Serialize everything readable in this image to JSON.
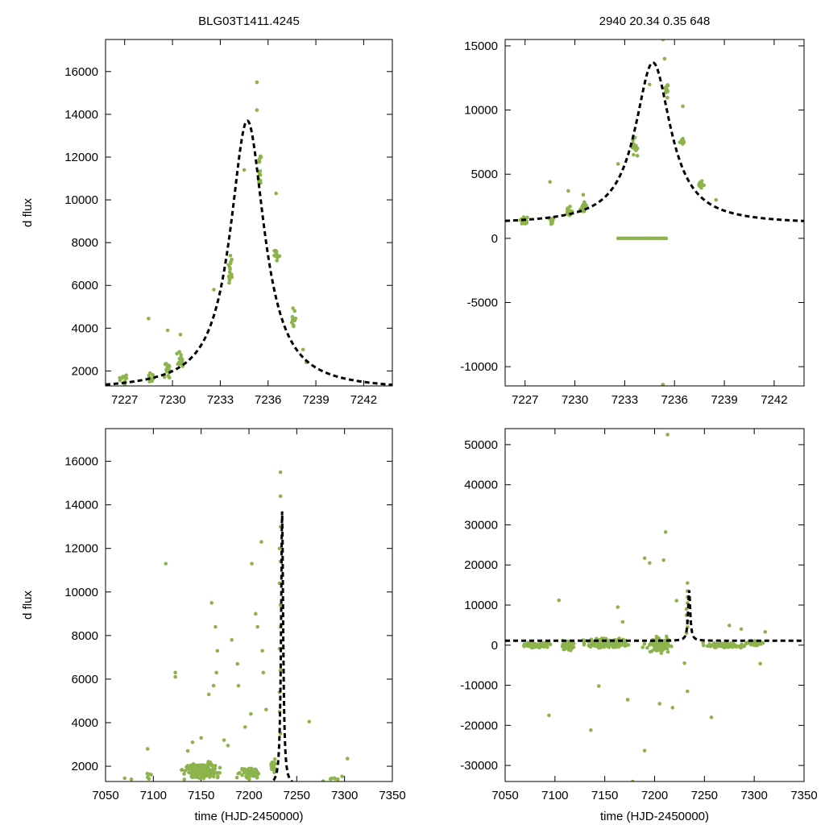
{
  "colors": {
    "points": "#8db34d",
    "model": "#000000",
    "frame": "#000000",
    "background": "#ffffff"
  },
  "icons": [],
  "chart_data": [
    {
      "id": "top-left",
      "type": "scatter",
      "title": "BLG03T1411.4245",
      "xlabel": "",
      "ylabel": "d flux",
      "xlim": [
        7225.8,
        7243.8
      ],
      "ylim": [
        1300,
        17500
      ],
      "xticks": [
        7227,
        7230,
        7233,
        7236,
        7239,
        7242
      ],
      "yticks": [
        2000,
        4000,
        6000,
        8000,
        10000,
        12000,
        14000,
        16000
      ],
      "model": {
        "name": "model fit",
        "style": "dashed",
        "t0": 7234.7,
        "tE": 1.3,
        "peak": 13700,
        "base": 1100,
        "clusters": [
          {
            "x": 7226.9,
            "dx": 0.4,
            "y": 1700,
            "dy": 350,
            "n": 12
          },
          {
            "x": 7228.6,
            "dx": 0.3,
            "y": 1700,
            "dy": 300,
            "n": 12
          },
          {
            "x": 7229.7,
            "dx": 0.3,
            "y": 2100,
            "dy": 600,
            "n": 18
          },
          {
            "x": 7230.5,
            "dx": 0.3,
            "y": 2500,
            "dy": 500,
            "n": 16
          },
          {
            "x": 7233.6,
            "dx": 0.2,
            "y": 6800,
            "dy": 1300,
            "n": 16
          },
          {
            "x": 7235.5,
            "dx": 0.15,
            "y": 11500,
            "dy": 1200,
            "n": 14
          },
          {
            "x": 7236.5,
            "dx": 0.25,
            "y": 7300,
            "dy": 500,
            "n": 12
          },
          {
            "x": 7237.6,
            "dx": 0.2,
            "y": 4500,
            "dy": 700,
            "n": 16
          }
        ],
        "extra": [
          [
            7228.5,
            4450
          ],
          [
            7229.7,
            3900
          ],
          [
            7230.5,
            3700
          ],
          [
            7232.6,
            5800
          ],
          [
            7234.5,
            11400
          ],
          [
            7235.3,
            15500
          ],
          [
            7235.3,
            14200
          ],
          [
            7236.5,
            10300
          ],
          [
            7238.2,
            3000
          ],
          [
            7238.4,
            2400
          ]
        ]
      }
    },
    {
      "id": "top-right",
      "type": "scatter",
      "title": "2940  20.34  0.35  648",
      "xlabel": "",
      "ylabel": "",
      "xlim": [
        7225.8,
        7243.8
      ],
      "ylim": [
        -11500,
        15500
      ],
      "xticks": [
        7227,
        7230,
        7233,
        7236,
        7239,
        7242
      ],
      "yticks": [
        -10000,
        -5000,
        0,
        5000,
        10000,
        15000
      ],
      "model": {
        "name": "model fit",
        "style": "dashed",
        "t0": 7234.7,
        "tE": 1.3,
        "peak": 13700,
        "base": 1100,
        "clusters": [
          {
            "x": 7226.9,
            "dx": 0.4,
            "y": 1400,
            "dy": 400,
            "n": 14
          },
          {
            "x": 7228.6,
            "dx": 0.3,
            "y": 1400,
            "dy": 500,
            "n": 14
          },
          {
            "x": 7229.7,
            "dx": 0.3,
            "y": 2000,
            "dy": 800,
            "n": 18
          },
          {
            "x": 7230.5,
            "dx": 0.3,
            "y": 2300,
            "dy": 700,
            "n": 16
          },
          {
            "x": 7233.6,
            "dx": 0.2,
            "y": 7000,
            "dy": 1000,
            "n": 14
          },
          {
            "x": 7235.5,
            "dx": 0.15,
            "y": 11500,
            "dy": 1000,
            "n": 12
          },
          {
            "x": 7236.5,
            "dx": 0.25,
            "y": 7500,
            "dy": 500,
            "n": 10
          },
          {
            "x": 7237.6,
            "dx": 0.2,
            "y": 4300,
            "dy": 600,
            "n": 14
          }
        ],
        "extra": [
          [
            7228.5,
            4400
          ],
          [
            7229.6,
            3700
          ],
          [
            7230.5,
            3400
          ],
          [
            7232.6,
            5800
          ],
          [
            7234.5,
            12000
          ],
          [
            7235.3,
            15500
          ],
          [
            7235.4,
            14000
          ],
          [
            7236.5,
            10300
          ],
          [
            7238.5,
            3000
          ],
          [
            7235.3,
            -11400
          ]
        ],
        "zeros": {
          "x0": 7232.6,
          "x1": 7235.5,
          "y": 0,
          "n": 24
        }
      }
    },
    {
      "id": "bottom-left",
      "type": "scatter",
      "title": "",
      "xlabel": "time (HJD-2450000)",
      "ylabel": "d flux",
      "xlim": [
        7050,
        7350
      ],
      "ylim": [
        1300,
        17500
      ],
      "xticks": [
        7050,
        7100,
        7150,
        7200,
        7250,
        7300,
        7350
      ],
      "yticks": [
        2000,
        4000,
        6000,
        8000,
        10000,
        12000,
        14000,
        16000
      ],
      "model": {
        "name": "model fit",
        "style": "dashed",
        "t0": 7234.7,
        "tE": 1.3,
        "peak": 13700,
        "base": 1100,
        "clusters": [
          {
            "x": 7150,
            "dx": 25,
            "y": 1800,
            "dy": 500,
            "n": 170
          },
          {
            "x": 7200,
            "dx": 16,
            "y": 1700,
            "dy": 450,
            "n": 55
          },
          {
            "x": 7225,
            "dx": 6,
            "y": 2000,
            "dy": 500,
            "n": 18
          },
          {
            "x": 7095,
            "dx": 4,
            "y": 1500,
            "dy": 300,
            "n": 6
          },
          {
            "x": 7290,
            "dx": 20,
            "y": 1450,
            "dy": 200,
            "n": 8
          }
        ],
        "extra": [
          [
            7113,
            11300
          ],
          [
            7123,
            6300
          ],
          [
            7123,
            6100
          ],
          [
            7161,
            9500
          ],
          [
            7165,
            8400
          ],
          [
            7167,
            7300
          ],
          [
            7166,
            6300
          ],
          [
            7163,
            5700
          ],
          [
            7158,
            5300
          ],
          [
            7182,
            7800
          ],
          [
            7188,
            6700
          ],
          [
            7189,
            5700
          ],
          [
            7196,
            3800
          ],
          [
            7207,
            9000
          ],
          [
            7213,
            12300
          ],
          [
            7203,
            11300
          ],
          [
            7209,
            8400
          ],
          [
            7214,
            7300
          ],
          [
            7215,
            6300
          ],
          [
            7218,
            4600
          ],
          [
            7202,
            4400
          ],
          [
            7233,
            15500
          ],
          [
            7233,
            14400
          ],
          [
            7233,
            13000
          ],
          [
            7232,
            12000
          ],
          [
            7233,
            11400
          ],
          [
            7232,
            10400
          ],
          [
            7233,
            9400
          ],
          [
            7233,
            8400
          ],
          [
            7232,
            7400
          ],
          [
            7233,
            6400
          ],
          [
            7232,
            5400
          ],
          [
            7232,
            4500
          ],
          [
            7233,
            3500
          ],
          [
            7263,
            4050
          ],
          [
            7094,
            2800
          ],
          [
            7070,
            1450
          ],
          [
            7077,
            1400
          ],
          [
            7136,
            2700
          ],
          [
            7141,
            3100
          ],
          [
            7150,
            3300
          ],
          [
            7174,
            3200
          ],
          [
            7178,
            2950
          ],
          [
            7303,
            2350
          ]
        ]
      }
    },
    {
      "id": "bottom-right",
      "type": "scatter",
      "title": "",
      "xlabel": "time (HJD-2450000)",
      "ylabel": "",
      "xlim": [
        7050,
        7350
      ],
      "ylim": [
        -34000,
        54000
      ],
      "xticks": [
        7050,
        7100,
        7150,
        7200,
        7250,
        7300,
        7350
      ],
      "yticks": [
        -30000,
        -20000,
        -10000,
        0,
        10000,
        20000,
        30000,
        40000,
        50000
      ],
      "model": {
        "name": "model fit",
        "style": "dashed",
        "t0": 7234.7,
        "tE": 1.3,
        "peak": 13700,
        "base": 1100,
        "clusters": [
          {
            "x": 7080,
            "dx": 20,
            "y": 0,
            "dy": 1000,
            "n": 60
          },
          {
            "x": 7112,
            "dx": 10,
            "y": 0,
            "dy": 1500,
            "n": 50
          },
          {
            "x": 7150,
            "dx": 28,
            "y": 500,
            "dy": 1500,
            "n": 200
          },
          {
            "x": 7205,
            "dx": 18,
            "y": 0,
            "dy": 2500,
            "n": 90
          },
          {
            "x": 7270,
            "dx": 25,
            "y": 0,
            "dy": 1000,
            "n": 80
          },
          {
            "x": 7300,
            "dx": 12,
            "y": 500,
            "dy": 1000,
            "n": 30
          }
        ],
        "extra": [
          [
            7094,
            -17500
          ],
          [
            7136,
            -21200
          ],
          [
            7104,
            11200
          ],
          [
            7190,
            -26300
          ],
          [
            7190,
            21700
          ],
          [
            7178,
            -34000
          ],
          [
            7195,
            20500
          ],
          [
            7211,
            28200
          ],
          [
            7209,
            21200
          ],
          [
            7213,
            52500
          ],
          [
            7205,
            -14600
          ],
          [
            7218,
            -15600
          ],
          [
            7233,
            15500
          ],
          [
            7233,
            13500
          ],
          [
            7233,
            12000
          ],
          [
            7233,
            10500
          ],
          [
            7232,
            9000
          ],
          [
            7232,
            7500
          ],
          [
            7233,
            6000
          ],
          [
            7233,
            4500
          ],
          [
            7232,
            3000
          ],
          [
            7233,
            -11500
          ],
          [
            7257,
            -18000
          ],
          [
            7163,
            9500
          ],
          [
            7173,
            -13600
          ],
          [
            7168,
            5800
          ],
          [
            7144,
            -10200
          ],
          [
            7222,
            11100
          ],
          [
            7230,
            -4500
          ],
          [
            7275,
            4900
          ],
          [
            7287,
            4000
          ],
          [
            7306,
            -4600
          ],
          [
            7311,
            3300
          ]
        ]
      }
    }
  ]
}
